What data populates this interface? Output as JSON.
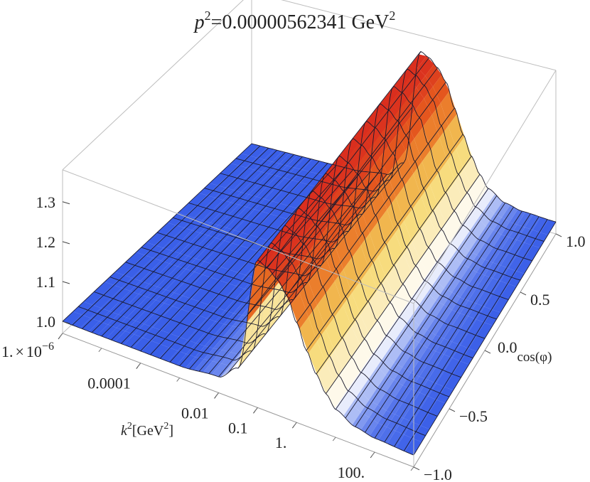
{
  "chart_data": {
    "type": "surface3d",
    "title": {
      "var": "p",
      "sup": "2",
      "value": "=0.00000562341 GeV",
      "unit_sup": "2"
    },
    "x_axis": {
      "label_var": "k",
      "label_sup": "2",
      "label_bracket_open": "[GeV",
      "label_bracket_sup": "2",
      "label_bracket_close": "]",
      "scale": "log",
      "range": [
        1e-06,
        1000
      ],
      "ticks": [
        {
          "value": 1e-06,
          "mantissa": "1.",
          "times": "×",
          "base": "10",
          "exp": "−6"
        },
        {
          "value": 0.0001,
          "label": "0.0001"
        },
        {
          "value": 0.01,
          "label": "0.01"
        },
        {
          "value": 0.1,
          "label": "0.1"
        },
        {
          "value": 1,
          "label": "1."
        },
        {
          "value": 100,
          "label": "100."
        }
      ]
    },
    "y_axis": {
      "label_base": "0.0",
      "label_sub": "cos(φ)",
      "range": [
        -1,
        1
      ],
      "ticks": [
        {
          "value": 1.0,
          "label": "1.0"
        },
        {
          "value": 0.5,
          "label": "0.5"
        },
        {
          "value": 0.0,
          "label": ""
        },
        {
          "value": -0.5,
          "label": "−0.5"
        },
        {
          "value": -1.0,
          "label": "−1.0"
        }
      ]
    },
    "z_axis": {
      "range": [
        0.97,
        1.38
      ],
      "ticks": [
        {
          "value": 1.0,
          "label": "1.0"
        },
        {
          "value": 1.1,
          "label": "1.1"
        },
        {
          "value": 1.2,
          "label": "1.2"
        },
        {
          "value": 1.3,
          "label": "1.3"
        }
      ]
    },
    "surface_profile_vs_log10_k2": {
      "log10_k2": [
        -6,
        -5,
        -4,
        -3,
        -2,
        -1.5,
        -1,
        -0.75,
        -0.5,
        -0.25,
        0,
        0.25,
        0.5,
        0.75,
        1,
        1.5,
        2,
        3
      ],
      "z": [
        1.0,
        1.0,
        1.0,
        1.0,
        1.01,
        1.05,
        1.34,
        1.33,
        1.31,
        1.28,
        1.22,
        1.16,
        1.11,
        1.07,
        1.04,
        1.015,
        1.005,
        1.0
      ],
      "note_profile_independent_of": "cos(φ)"
    },
    "colormap": [
      "#3a5fe8",
      "#ffffff",
      "#f5d460",
      "#e8661e",
      "#d8281e"
    ]
  }
}
